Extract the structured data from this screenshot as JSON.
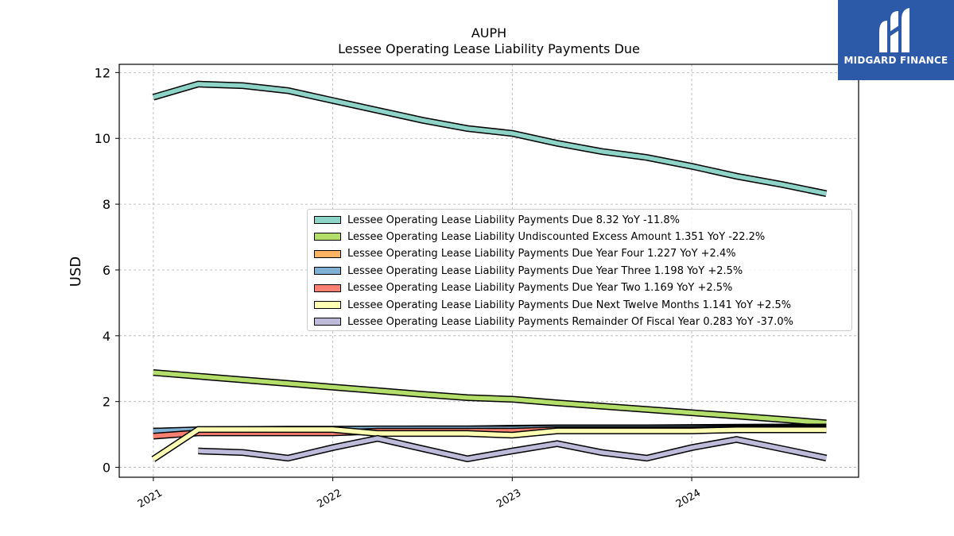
{
  "chart_data": {
    "type": "line",
    "title": "AUPH",
    "subtitle": "Lessee Operating Lease Liability Payments Due",
    "xlabel": "",
    "ylabel": "USD",
    "xlim": [
      2020.81,
      2024.93
    ],
    "ylim": [
      -0.3,
      12.25
    ],
    "yticks": [
      0,
      2,
      4,
      6,
      8,
      10,
      12
    ],
    "xticks": [
      {
        "value": 2021,
        "label": "2021"
      },
      {
        "value": 2022,
        "label": "2022"
      },
      {
        "value": 2023,
        "label": "2023"
      },
      {
        "value": 2024,
        "label": "2024"
      }
    ],
    "grid": true,
    "legend_position": "center-right",
    "series": [
      {
        "name": "Lessee Operating Lease Liability Payments Due  8.32 YoY -11.8%",
        "color": "#8dd3c7",
        "points": [
          [
            2021.0,
            11.25
          ],
          [
            2021.25,
            11.65
          ],
          [
            2021.5,
            11.6
          ],
          [
            2021.75,
            11.45
          ],
          [
            2022.0,
            11.15
          ],
          [
            2022.25,
            10.85
          ],
          [
            2022.5,
            10.55
          ],
          [
            2022.75,
            10.3
          ],
          [
            2023.0,
            10.15
          ],
          [
            2023.25,
            9.85
          ],
          [
            2023.5,
            9.6
          ],
          [
            2023.75,
            9.42
          ],
          [
            2024.0,
            9.15
          ],
          [
            2024.25,
            8.85
          ],
          [
            2024.5,
            8.6
          ],
          [
            2024.75,
            8.32
          ]
        ]
      },
      {
        "name": "Lessee Operating Lease Liability Undiscounted Excess Amount  1.351 YoY -22.2%",
        "color": "#b3de69",
        "points": [
          [
            2021.0,
            2.88
          ],
          [
            2021.25,
            2.77
          ],
          [
            2021.5,
            2.66
          ],
          [
            2021.75,
            2.55
          ],
          [
            2022.0,
            2.44
          ],
          [
            2022.25,
            2.33
          ],
          [
            2022.5,
            2.22
          ],
          [
            2022.75,
            2.12
          ],
          [
            2023.0,
            2.07
          ],
          [
            2023.25,
            1.96
          ],
          [
            2023.5,
            1.86
          ],
          [
            2023.75,
            1.76
          ],
          [
            2024.0,
            1.66
          ],
          [
            2024.25,
            1.56
          ],
          [
            2024.5,
            1.46
          ],
          [
            2024.75,
            1.351
          ]
        ]
      },
      {
        "name": "Lessee Operating Lease Liability Payments Due Year Four  1.227 YoY +2.4%",
        "color": "#fdb462",
        "points": [
          [
            2021.0,
            1.1
          ],
          [
            2021.25,
            1.13
          ],
          [
            2021.5,
            1.14
          ],
          [
            2021.75,
            1.14
          ],
          [
            2022.0,
            1.15
          ],
          [
            2022.25,
            1.16
          ],
          [
            2022.5,
            1.17
          ],
          [
            2022.75,
            1.17
          ],
          [
            2023.0,
            1.19
          ],
          [
            2023.25,
            1.2
          ],
          [
            2023.5,
            1.2
          ],
          [
            2023.75,
            1.2
          ],
          [
            2024.0,
            1.21
          ],
          [
            2024.25,
            1.22
          ],
          [
            2024.5,
            1.227
          ],
          [
            2024.75,
            1.227
          ]
        ]
      },
      {
        "name": "Lessee Operating Lease Liability Payments Due Year Three  1.198 YoY +2.5%",
        "color": "#80b1d3",
        "points": [
          [
            2021.0,
            1.1
          ],
          [
            2021.25,
            1.14
          ],
          [
            2021.5,
            1.15
          ],
          [
            2021.75,
            1.16
          ],
          [
            2022.0,
            1.16
          ],
          [
            2022.25,
            1.17
          ],
          [
            2022.5,
            1.17
          ],
          [
            2022.75,
            1.17
          ],
          [
            2023.0,
            1.17
          ],
          [
            2023.25,
            1.19
          ],
          [
            2023.5,
            1.19
          ],
          [
            2023.75,
            1.19
          ],
          [
            2024.0,
            1.19
          ],
          [
            2024.25,
            1.198
          ],
          [
            2024.5,
            1.198
          ],
          [
            2024.75,
            1.198
          ]
        ]
      },
      {
        "name": "Lessee Operating Lease Liability Payments Due Year Two  1.169 YoY +2.5%",
        "color": "#fb8072",
        "points": [
          [
            2021.0,
            0.95
          ],
          [
            2021.25,
            1.05
          ],
          [
            2021.5,
            1.05
          ],
          [
            2021.75,
            1.05
          ],
          [
            2022.0,
            1.05
          ],
          [
            2022.25,
            1.1
          ],
          [
            2022.5,
            1.1
          ],
          [
            2022.75,
            1.1
          ],
          [
            2023.0,
            1.1
          ],
          [
            2023.25,
            1.14
          ],
          [
            2023.5,
            1.14
          ],
          [
            2023.75,
            1.14
          ],
          [
            2024.0,
            1.14
          ],
          [
            2024.25,
            1.169
          ],
          [
            2024.5,
            1.169
          ],
          [
            2024.75,
            1.169
          ]
        ]
      },
      {
        "name": "Lessee Operating Lease Liability Payments Due Next Twelve Months  1.141 YoY +2.5%",
        "color": "#ffffb3",
        "points": [
          [
            2021.0,
            0.25
          ],
          [
            2021.25,
            1.15
          ],
          [
            2021.5,
            1.15
          ],
          [
            2021.75,
            1.15
          ],
          [
            2022.0,
            1.15
          ],
          [
            2022.25,
            1.03
          ],
          [
            2022.5,
            1.03
          ],
          [
            2022.75,
            1.03
          ],
          [
            2023.0,
            0.98
          ],
          [
            2023.25,
            1.11
          ],
          [
            2023.5,
            1.11
          ],
          [
            2023.75,
            1.11
          ],
          [
            2024.0,
            1.11
          ],
          [
            2024.25,
            1.141
          ],
          [
            2024.5,
            1.141
          ],
          [
            2024.75,
            1.141
          ]
        ]
      },
      {
        "name": "Lessee Operating Lease Liability Payments Remainder Of Fiscal Year  0.283 YoY -37.0%",
        "color": "#bebada",
        "points": [
          [
            2021.25,
            0.5
          ],
          [
            2021.5,
            0.45
          ],
          [
            2021.75,
            0.28
          ],
          [
            2022.0,
            0.6
          ],
          [
            2022.25,
            0.88
          ],
          [
            2022.5,
            0.57
          ],
          [
            2022.75,
            0.26
          ],
          [
            2023.0,
            0.5
          ],
          [
            2023.25,
            0.72
          ],
          [
            2023.5,
            0.45
          ],
          [
            2023.75,
            0.28
          ],
          [
            2024.0,
            0.6
          ],
          [
            2024.25,
            0.85
          ],
          [
            2024.5,
            0.57
          ],
          [
            2024.75,
            0.283
          ]
        ]
      }
    ]
  },
  "logo": {
    "text": "MIDGARD FINANCE"
  }
}
